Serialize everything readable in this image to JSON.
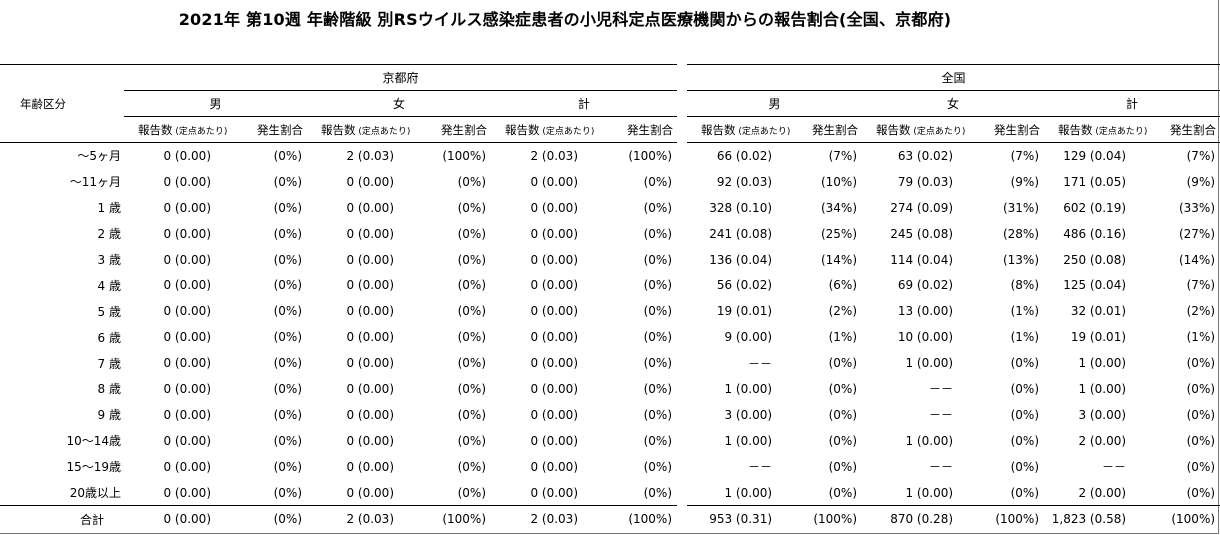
{
  "title": "2021年 第10週 年齢階級 別RSウイルス感染症患者の小児科定点医療機関からの報告割合(全国、京都府)",
  "header": {
    "age_label": "年齢区分",
    "regions": [
      "京都府",
      "全国"
    ],
    "sexes": [
      "男",
      "女",
      "計"
    ],
    "col_report": "報告数",
    "col_per_sentinel": "(定点あたり)",
    "col_rate": "発生割合"
  },
  "rows": [
    {
      "age": "～5ヶ月",
      "kyoto": [
        [
          "0 (0.00)",
          "(0%)"
        ],
        [
          "2 (0.03)",
          "(100%)"
        ],
        [
          "2 (0.03)",
          "(100%)"
        ]
      ],
      "national": [
        [
          "66 (0.02)",
          "(7%)"
        ],
        [
          "63 (0.02)",
          "(7%)"
        ],
        [
          "129 (0.04)",
          "(7%)"
        ]
      ]
    },
    {
      "age": "～11ヶ月",
      "kyoto": [
        [
          "0 (0.00)",
          "(0%)"
        ],
        [
          "0 (0.00)",
          "(0%)"
        ],
        [
          "0 (0.00)",
          "(0%)"
        ]
      ],
      "national": [
        [
          "92 (0.03)",
          "(10%)"
        ],
        [
          "79 (0.03)",
          "(9%)"
        ],
        [
          "171 (0.05)",
          "(9%)"
        ]
      ]
    },
    {
      "age": "1 歳",
      "kyoto": [
        [
          "0 (0.00)",
          "(0%)"
        ],
        [
          "0 (0.00)",
          "(0%)"
        ],
        [
          "0 (0.00)",
          "(0%)"
        ]
      ],
      "national": [
        [
          "328 (0.10)",
          "(34%)"
        ],
        [
          "274 (0.09)",
          "(31%)"
        ],
        [
          "602 (0.19)",
          "(33%)"
        ]
      ]
    },
    {
      "age": "2 歳",
      "kyoto": [
        [
          "0 (0.00)",
          "(0%)"
        ],
        [
          "0 (0.00)",
          "(0%)"
        ],
        [
          "0 (0.00)",
          "(0%)"
        ]
      ],
      "national": [
        [
          "241 (0.08)",
          "(25%)"
        ],
        [
          "245 (0.08)",
          "(28%)"
        ],
        [
          "486 (0.16)",
          "(27%)"
        ]
      ]
    },
    {
      "age": "3 歳",
      "kyoto": [
        [
          "0 (0.00)",
          "(0%)"
        ],
        [
          "0 (0.00)",
          "(0%)"
        ],
        [
          "0 (0.00)",
          "(0%)"
        ]
      ],
      "national": [
        [
          "136 (0.04)",
          "(14%)"
        ],
        [
          "114 (0.04)",
          "(13%)"
        ],
        [
          "250 (0.08)",
          "(14%)"
        ]
      ]
    },
    {
      "age": "4 歳",
      "kyoto": [
        [
          "0 (0.00)",
          "(0%)"
        ],
        [
          "0 (0.00)",
          "(0%)"
        ],
        [
          "0 (0.00)",
          "(0%)"
        ]
      ],
      "national": [
        [
          "56 (0.02)",
          "(6%)"
        ],
        [
          "69 (0.02)",
          "(8%)"
        ],
        [
          "125 (0.04)",
          "(7%)"
        ]
      ]
    },
    {
      "age": "5 歳",
      "kyoto": [
        [
          "0 (0.00)",
          "(0%)"
        ],
        [
          "0 (0.00)",
          "(0%)"
        ],
        [
          "0 (0.00)",
          "(0%)"
        ]
      ],
      "national": [
        [
          "19 (0.01)",
          "(2%)"
        ],
        [
          "13 (0.00)",
          "(1%)"
        ],
        [
          "32 (0.01)",
          "(2%)"
        ]
      ]
    },
    {
      "age": "6 歳",
      "kyoto": [
        [
          "0 (0.00)",
          "(0%)"
        ],
        [
          "0 (0.00)",
          "(0%)"
        ],
        [
          "0 (0.00)",
          "(0%)"
        ]
      ],
      "national": [
        [
          "9 (0.00)",
          "(1%)"
        ],
        [
          "10 (0.00)",
          "(1%)"
        ],
        [
          "19 (0.01)",
          "(1%)"
        ]
      ]
    },
    {
      "age": "7 歳",
      "kyoto": [
        [
          "0 (0.00)",
          "(0%)"
        ],
        [
          "0 (0.00)",
          "(0%)"
        ],
        [
          "0 (0.00)",
          "(0%)"
        ]
      ],
      "national": [
        [
          "－－",
          "(0%)"
        ],
        [
          "1 (0.00)",
          "(0%)"
        ],
        [
          "1 (0.00)",
          "(0%)"
        ]
      ]
    },
    {
      "age": "8 歳",
      "kyoto": [
        [
          "0 (0.00)",
          "(0%)"
        ],
        [
          "0 (0.00)",
          "(0%)"
        ],
        [
          "0 (0.00)",
          "(0%)"
        ]
      ],
      "national": [
        [
          "1 (0.00)",
          "(0%)"
        ],
        [
          "－－",
          "(0%)"
        ],
        [
          "1 (0.00)",
          "(0%)"
        ]
      ]
    },
    {
      "age": "9 歳",
      "kyoto": [
        [
          "0 (0.00)",
          "(0%)"
        ],
        [
          "0 (0.00)",
          "(0%)"
        ],
        [
          "0 (0.00)",
          "(0%)"
        ]
      ],
      "national": [
        [
          "3 (0.00)",
          "(0%)"
        ],
        [
          "－－",
          "(0%)"
        ],
        [
          "3 (0.00)",
          "(0%)"
        ]
      ]
    },
    {
      "age": "10～14歳",
      "kyoto": [
        [
          "0 (0.00)",
          "(0%)"
        ],
        [
          "0 (0.00)",
          "(0%)"
        ],
        [
          "0 (0.00)",
          "(0%)"
        ]
      ],
      "national": [
        [
          "1 (0.00)",
          "(0%)"
        ],
        [
          "1 (0.00)",
          "(0%)"
        ],
        [
          "2 (0.00)",
          "(0%)"
        ]
      ]
    },
    {
      "age": "15～19歳",
      "kyoto": [
        [
          "0 (0.00)",
          "(0%)"
        ],
        [
          "0 (0.00)",
          "(0%)"
        ],
        [
          "0 (0.00)",
          "(0%)"
        ]
      ],
      "national": [
        [
          "－－",
          "(0%)"
        ],
        [
          "－－",
          "(0%)"
        ],
        [
          "－－",
          "(0%)"
        ]
      ]
    },
    {
      "age": "20歳以上",
      "kyoto": [
        [
          "0 (0.00)",
          "(0%)"
        ],
        [
          "0 (0.00)",
          "(0%)"
        ],
        [
          "0 (0.00)",
          "(0%)"
        ]
      ],
      "national": [
        [
          "1 (0.00)",
          "(0%)"
        ],
        [
          "1 (0.00)",
          "(0%)"
        ],
        [
          "2 (0.00)",
          "(0%)"
        ]
      ]
    }
  ],
  "total": {
    "age": "合計",
    "kyoto": [
      [
        "0 (0.00)",
        "(0%)"
      ],
      [
        "2 (0.03)",
        "(100%)"
      ],
      [
        "2 (0.03)",
        "(100%)"
      ]
    ],
    "national": [
      [
        "953 (0.31)",
        "(100%)"
      ],
      [
        "870 (0.28)",
        "(100%)"
      ],
      [
        "1,823 (0.58)",
        "(100%)"
      ]
    ]
  }
}
